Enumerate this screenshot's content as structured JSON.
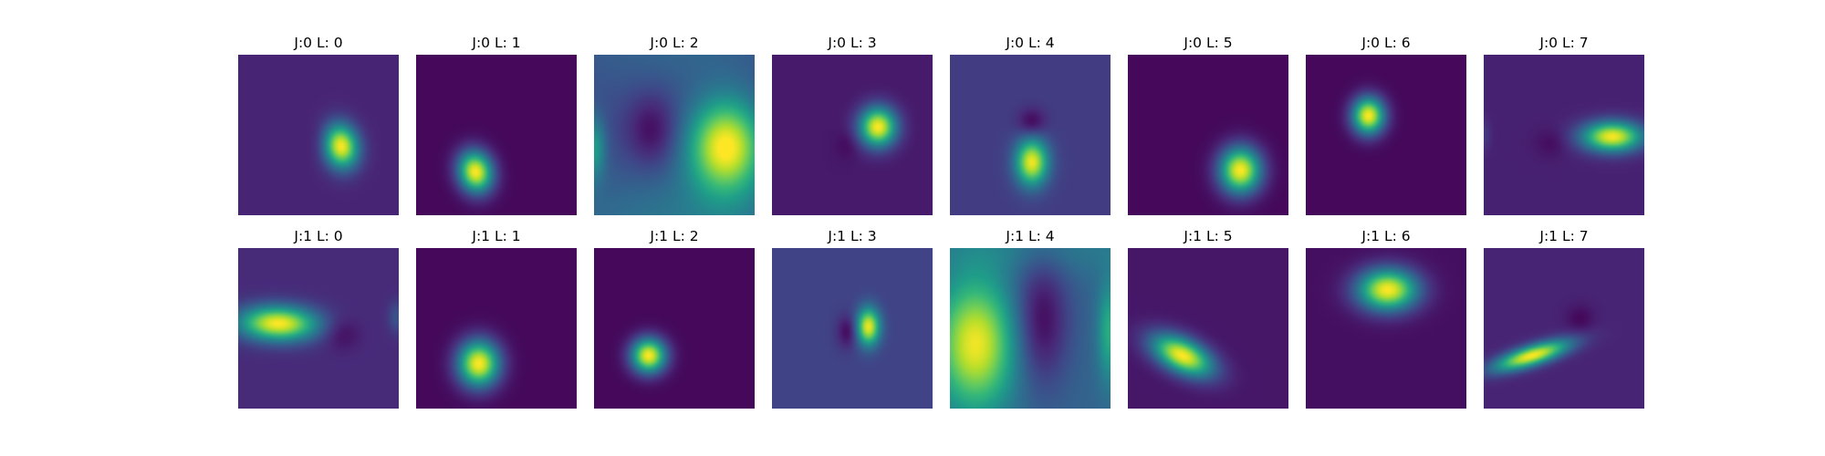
{
  "chart_data": {
    "type": "heatmap",
    "colormap": "viridis",
    "axes_visible": false,
    "value_range": [
      0,
      1
    ],
    "rows": 2,
    "cols": 8,
    "panels": [
      {
        "title": "J:0 L: 0",
        "background": 0.1,
        "blobs": [
          {
            "x": 0.64,
            "y": 0.57,
            "sx": 0.075,
            "sy": 0.095,
            "rho": 0.1,
            "amp": 0.9
          },
          {
            "x": 0.52,
            "y": 0.54,
            "sx": 0.06,
            "sy": 0.08,
            "rho": 0.0,
            "amp": -0.05
          }
        ]
      },
      {
        "title": "J:0 L: 1",
        "background": 0.02,
        "blobs": [
          {
            "x": 0.37,
            "y": 0.73,
            "sx": 0.075,
            "sy": 0.09,
            "rho": 0.1,
            "amp": 0.98
          }
        ]
      },
      {
        "title": "J:0 L: 2",
        "background": 0.22,
        "blobs": [
          {
            "x": 0.82,
            "y": 0.57,
            "sx": 0.16,
            "sy": 0.2,
            "rho": 0.0,
            "amp": 0.78
          },
          {
            "x": 0.36,
            "y": 0.47,
            "sx": 0.11,
            "sy": 0.16,
            "rho": 0.0,
            "amp": -0.2
          },
          {
            "x": 0.0,
            "y": 0.58,
            "sx": 0.05,
            "sy": 0.14,
            "rho": 0.0,
            "amp": 0.32
          },
          {
            "x": 0.6,
            "y": 1.05,
            "sx": 0.6,
            "sy": 0.25,
            "rho": 0.0,
            "amp": 0.18
          },
          {
            "x": 0.5,
            "y": -0.05,
            "sx": 0.5,
            "sy": 0.22,
            "rho": 0.0,
            "amp": 0.1
          }
        ]
      },
      {
        "title": "J:0 L: 3",
        "background": 0.07,
        "blobs": [
          {
            "x": 0.66,
            "y": 0.45,
            "sx": 0.08,
            "sy": 0.085,
            "rho": 0.0,
            "amp": 0.93
          },
          {
            "x": 0.47,
            "y": 0.56,
            "sx": 0.05,
            "sy": 0.06,
            "rho": 0.0,
            "amp": -0.05
          }
        ]
      },
      {
        "title": "J:0 L: 4",
        "background": 0.18,
        "blobs": [
          {
            "x": 0.51,
            "y": 0.67,
            "sx": 0.07,
            "sy": 0.1,
            "rho": 0.0,
            "amp": 0.8
          },
          {
            "x": 0.51,
            "y": 0.42,
            "sx": 0.06,
            "sy": 0.06,
            "rho": 0.0,
            "amp": -0.17
          }
        ]
      },
      {
        "title": "J:0 L: 5",
        "background": 0.02,
        "blobs": [
          {
            "x": 0.7,
            "y": 0.72,
            "sx": 0.09,
            "sy": 0.1,
            "rho": 0.0,
            "amp": 0.98
          }
        ]
      },
      {
        "title": "J:0 L: 6",
        "background": 0.02,
        "blobs": [
          {
            "x": 0.39,
            "y": 0.38,
            "sx": 0.07,
            "sy": 0.08,
            "rho": 0.0,
            "amp": 0.98
          }
        ]
      },
      {
        "title": "J:0 L: 7",
        "background": 0.09,
        "blobs": [
          {
            "x": 0.8,
            "y": 0.51,
            "sx": 0.13,
            "sy": 0.065,
            "rho": 0.0,
            "amp": 0.9
          },
          {
            "x": 0.42,
            "y": 0.55,
            "sx": 0.07,
            "sy": 0.06,
            "rho": 0.0,
            "amp": -0.06
          },
          {
            "x": 0.0,
            "y": 0.5,
            "sx": 0.03,
            "sy": 0.07,
            "rho": 0.0,
            "amp": 0.08
          }
        ]
      },
      {
        "title": "J:1 L: 0",
        "background": 0.12,
        "blobs": [
          {
            "x": 0.25,
            "y": 0.47,
            "sx": 0.17,
            "sy": 0.075,
            "rho": 0.05,
            "amp": 0.88
          },
          {
            "x": 0.64,
            "y": 0.53,
            "sx": 0.08,
            "sy": 0.07,
            "rho": 0.0,
            "amp": -0.1
          },
          {
            "x": 0.99,
            "y": 0.43,
            "sx": 0.04,
            "sy": 0.07,
            "rho": 0.0,
            "amp": 0.14
          }
        ]
      },
      {
        "title": "J:1 L: 1",
        "background": 0.02,
        "blobs": [
          {
            "x": 0.39,
            "y": 0.72,
            "sx": 0.09,
            "sy": 0.1,
            "rho": 0.0,
            "amp": 0.98
          }
        ]
      },
      {
        "title": "J:1 L: 2",
        "background": 0.02,
        "blobs": [
          {
            "x": 0.34,
            "y": 0.67,
            "sx": 0.075,
            "sy": 0.075,
            "rho": 0.0,
            "amp": 0.98
          }
        ]
      },
      {
        "title": "J:1 L: 3",
        "background": 0.2,
        "blobs": [
          {
            "x": 0.6,
            "y": 0.49,
            "sx": 0.05,
            "sy": 0.08,
            "rho": 0.0,
            "amp": 0.78
          },
          {
            "x": 0.47,
            "y": 0.52,
            "sx": 0.045,
            "sy": 0.07,
            "rho": 0.0,
            "amp": -0.18
          }
        ]
      },
      {
        "title": "J:1 L: 4",
        "background": 0.32,
        "blobs": [
          {
            "x": 0.16,
            "y": 0.6,
            "sx": 0.17,
            "sy": 0.28,
            "rho": 0.0,
            "amp": 0.66
          },
          {
            "x": 0.57,
            "y": 0.45,
            "sx": 0.12,
            "sy": 0.28,
            "rho": 0.0,
            "amp": -0.3
          },
          {
            "x": 0.99,
            "y": 0.52,
            "sx": 0.05,
            "sy": 0.22,
            "rho": 0.0,
            "amp": 0.3
          },
          {
            "x": 0.5,
            "y": 0.0,
            "sx": 0.6,
            "sy": 0.12,
            "rho": 0.0,
            "amp": 0.1
          }
        ]
      },
      {
        "title": "J:1 L: 5",
        "background": 0.06,
        "blobs": [
          {
            "x": 0.34,
            "y": 0.67,
            "sx": 0.13,
            "sy": 0.09,
            "rho": 0.5,
            "amp": 0.94
          }
        ]
      },
      {
        "title": "J:1 L: 6",
        "background": 0.04,
        "blobs": [
          {
            "x": 0.51,
            "y": 0.26,
            "sx": 0.13,
            "sy": 0.09,
            "rho": 0.0,
            "amp": 0.96
          }
        ]
      },
      {
        "title": "J:1 L: 7",
        "background": 0.1,
        "blobs": [
          {
            "x": 0.3,
            "y": 0.67,
            "sx": 0.16,
            "sy": 0.065,
            "rho": -0.72,
            "amp": 0.9
          },
          {
            "x": 0.6,
            "y": 0.44,
            "sx": 0.06,
            "sy": 0.06,
            "rho": 0.0,
            "amp": -0.08
          }
        ]
      }
    ]
  }
}
